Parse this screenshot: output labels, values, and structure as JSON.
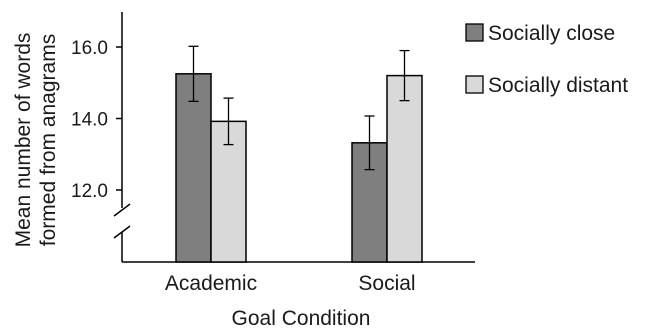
{
  "chart_data": {
    "type": "bar",
    "categories": [
      "Academic",
      "Social"
    ],
    "series": [
      {
        "name": "Socially close",
        "values": [
          15.25,
          13.32
        ],
        "error": [
          0.77,
          0.75
        ],
        "color": "#7f7f7f"
      },
      {
        "name": "Socially distant",
        "values": [
          13.92,
          15.2
        ],
        "error": [
          0.65,
          0.7
        ],
        "color": "#d9d9d9"
      }
    ],
    "yticks": [
      "12.0",
      "14.0",
      "16.0"
    ],
    "ytick_values": [
      12,
      14,
      16
    ],
    "ylim": [
      11,
      17
    ],
    "axis_break": true,
    "xlabel": "Goal Condition",
    "ylabel_lines": [
      "Mean number of words",
      "formed from anagrams"
    ],
    "legend_position": "top-right",
    "grid": false
  }
}
